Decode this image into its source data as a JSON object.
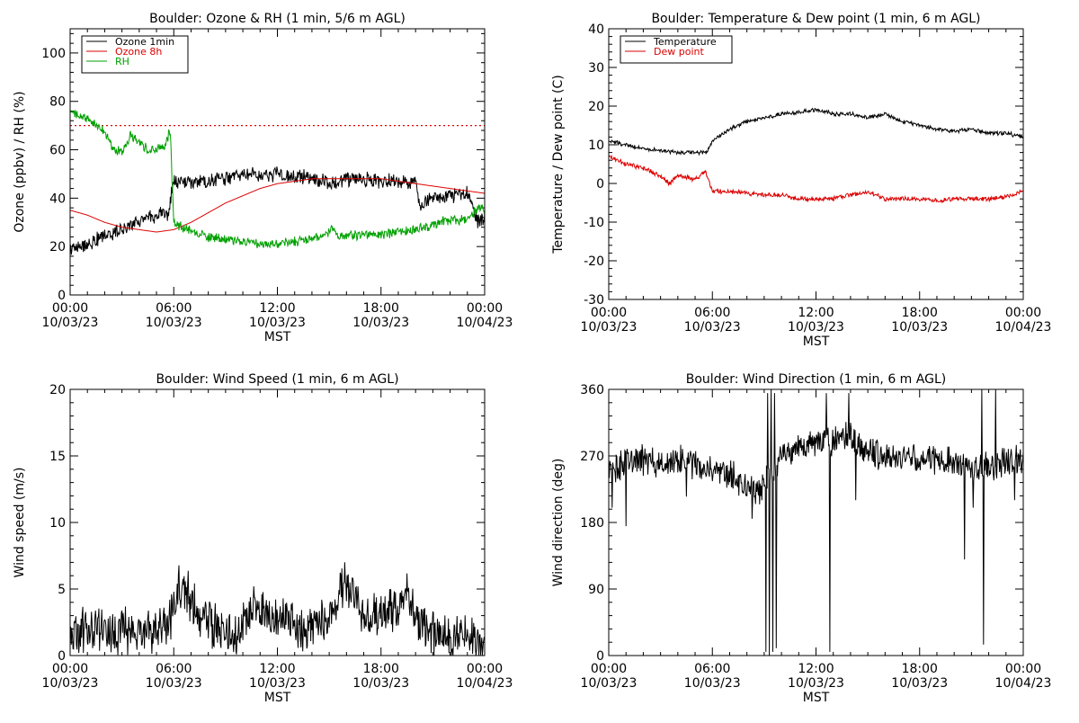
{
  "chart_data": [
    {
      "type": "line",
      "title": "Boulder: Ozone & RH (1 min, 5/6 m AGL)",
      "ylabel": "Ozone (ppbv) / RH (%)",
      "xlabel": "MST",
      "ylim": [
        0,
        110
      ],
      "yticks": [
        0,
        20,
        40,
        60,
        80,
        100
      ],
      "xtick_times": [
        "00:00",
        "06:00",
        "12:00",
        "18:00",
        "00:00"
      ],
      "xtick_dates": [
        "10/03/23",
        "10/03/23",
        "10/03/23",
        "10/03/23",
        "10/04/23"
      ],
      "xlim_hours": [
        0,
        24
      ],
      "legend_position": "top-left",
      "reference_line": {
        "y": 70,
        "color": "#dd0000",
        "style": "dotted"
      },
      "series": [
        {
          "name": "Ozone 1min",
          "color": "#000000",
          "noise": 1.8,
          "points": [
            [
              0,
              19
            ],
            [
              1,
              21
            ],
            [
              2,
              24
            ],
            [
              3,
              27
            ],
            [
              4,
              31
            ],
            [
              5,
              33
            ],
            [
              5.7,
              34
            ],
            [
              5.85,
              42
            ],
            [
              6,
              46
            ],
            [
              7,
              47
            ],
            [
              8,
              47
            ],
            [
              9,
              48
            ],
            [
              10,
              50
            ],
            [
              11,
              49
            ],
            [
              12,
              50
            ],
            [
              13,
              49
            ],
            [
              14,
              48
            ],
            [
              15,
              46
            ],
            [
              16,
              48
            ],
            [
              17,
              48
            ],
            [
              18,
              47
            ],
            [
              19,
              47
            ],
            [
              20,
              47
            ],
            [
              20.2,
              37
            ],
            [
              21,
              40
            ],
            [
              22,
              41
            ],
            [
              23,
              42
            ],
            [
              23.6,
              31
            ],
            [
              24,
              32
            ]
          ]
        },
        {
          "name": "Ozone 8h",
          "color": "#dd0000",
          "noise": 0,
          "points": [
            [
              0,
              35
            ],
            [
              1,
              33
            ],
            [
              2,
              30
            ],
            [
              3,
              28
            ],
            [
              4,
              27
            ],
            [
              5,
              26
            ],
            [
              6,
              27
            ],
            [
              7,
              30
            ],
            [
              8,
              34
            ],
            [
              9,
              38
            ],
            [
              10,
              41
            ],
            [
              11,
              44
            ],
            [
              12,
              46
            ],
            [
              13,
              47
            ],
            [
              14,
              48
            ],
            [
              15,
              48
            ],
            [
              16,
              48
            ],
            [
              17,
              48
            ],
            [
              18,
              48
            ],
            [
              19,
              47
            ],
            [
              20,
              46
            ],
            [
              21,
              45
            ],
            [
              22,
              44
            ],
            [
              23,
              43
            ],
            [
              24,
              42
            ]
          ]
        },
        {
          "name": "RH",
          "color": "#00a000",
          "noise": 1.2,
          "points": [
            [
              0,
              75
            ],
            [
              1,
              73
            ],
            [
              2,
              68
            ],
            [
              2.5,
              60
            ],
            [
              3,
              59
            ],
            [
              3.5,
              66
            ],
            [
              4,
              63
            ],
            [
              4.5,
              60
            ],
            [
              5,
              60
            ],
            [
              5.5,
              62
            ],
            [
              5.8,
              68
            ],
            [
              5.9,
              48
            ],
            [
              6,
              30
            ],
            [
              7,
              26
            ],
            [
              8,
              24
            ],
            [
              9,
              23
            ],
            [
              10,
              22
            ],
            [
              11,
              21
            ],
            [
              12,
              21
            ],
            [
              13,
              22
            ],
            [
              14,
              23
            ],
            [
              15,
              26
            ],
            [
              15.2,
              28
            ],
            [
              15.6,
              24
            ],
            [
              16,
              24
            ],
            [
              17,
              25
            ],
            [
              18,
              25
            ],
            [
              19,
              26
            ],
            [
              20,
              27
            ],
            [
              21,
              29
            ],
            [
              22,
              31
            ],
            [
              23,
              31
            ],
            [
              23.6,
              36
            ],
            [
              24,
              35
            ]
          ]
        }
      ]
    },
    {
      "type": "line",
      "title": "Boulder: Temperature & Dew point (1 min, 6 m AGL)",
      "ylabel": "Temperature / Dew point (C)",
      "xlabel": "MST",
      "ylim": [
        -30,
        40
      ],
      "yticks": [
        -30,
        -20,
        -10,
        0,
        10,
        20,
        30,
        40
      ],
      "xtick_times": [
        "00:00",
        "06:00",
        "12:00",
        "18:00",
        "00:00"
      ],
      "xtick_dates": [
        "10/03/23",
        "10/03/23",
        "10/03/23",
        "10/03/23",
        "10/04/23"
      ],
      "xlim_hours": [
        0,
        24
      ],
      "legend_position": "top-left",
      "series": [
        {
          "name": "Temperature",
          "color": "#000000",
          "noise": 0.3,
          "points": [
            [
              0,
              11
            ],
            [
              1,
              10
            ],
            [
              2,
              9
            ],
            [
              3,
              8.5
            ],
            [
              4,
              8
            ],
            [
              5,
              8
            ],
            [
              5.7,
              8
            ],
            [
              6,
              11
            ],
            [
              7,
              14
            ],
            [
              8,
              16
            ],
            [
              9,
              17
            ],
            [
              10,
              18
            ],
            [
              11,
              18.5
            ],
            [
              12,
              19
            ],
            [
              13,
              18
            ],
            [
              14,
              18
            ],
            [
              15,
              17
            ],
            [
              16,
              18
            ],
            [
              17,
              16
            ],
            [
              18,
              15
            ],
            [
              19,
              14
            ],
            [
              20,
              13.5
            ],
            [
              21,
              14
            ],
            [
              22,
              13
            ],
            [
              23,
              13
            ],
            [
              24,
              12
            ]
          ]
        },
        {
          "name": "Dew point",
          "color": "#dd0000",
          "noise": 0.35,
          "points": [
            [
              0,
              7
            ],
            [
              1,
              5
            ],
            [
              2,
              4
            ],
            [
              3,
              2
            ],
            [
              3.5,
              0
            ],
            [
              4,
              2
            ],
            [
              5,
              1
            ],
            [
              5.6,
              3
            ],
            [
              6,
              -2
            ],
            [
              7,
              -2
            ],
            [
              8,
              -2.5
            ],
            [
              9,
              -3
            ],
            [
              10,
              -3
            ],
            [
              11,
              -4
            ],
            [
              12,
              -4
            ],
            [
              13,
              -4
            ],
            [
              14,
              -3
            ],
            [
              15,
              -2
            ],
            [
              16,
              -4
            ],
            [
              17,
              -4
            ],
            [
              18,
              -4
            ],
            [
              19,
              -4.5
            ],
            [
              20,
              -4
            ],
            [
              21,
              -4
            ],
            [
              22,
              -4
            ],
            [
              23,
              -3.5
            ],
            [
              24,
              -2
            ]
          ]
        }
      ]
    },
    {
      "type": "line",
      "title": "Boulder: Wind Speed (1 min, 6 m AGL)",
      "ylabel": "Wind speed (m/s)",
      "xlabel": "MST",
      "ylim": [
        0,
        20
      ],
      "yticks": [
        0,
        5,
        10,
        15,
        20
      ],
      "xtick_times": [
        "00:00",
        "06:00",
        "12:00",
        "18:00",
        "00:00"
      ],
      "xtick_dates": [
        "10/03/23",
        "10/03/23",
        "10/03/23",
        "10/03/23",
        "10/04/23"
      ],
      "xlim_hours": [
        0,
        24
      ],
      "series": [
        {
          "name": "",
          "color": "#000000",
          "noise": 1.0,
          "points": [
            [
              0,
              1.5
            ],
            [
              1,
              1.8
            ],
            [
              2,
              1.8
            ],
            [
              3,
              1.8
            ],
            [
              4,
              1.8
            ],
            [
              5,
              2
            ],
            [
              5.6,
              2
            ],
            [
              6,
              4
            ],
            [
              6.5,
              5.5
            ],
            [
              7,
              4
            ],
            [
              8,
              2.5
            ],
            [
              9,
              1.5
            ],
            [
              10,
              2
            ],
            [
              10.5,
              4
            ],
            [
              11,
              3.5
            ],
            [
              12,
              2.5
            ],
            [
              12.5,
              3
            ],
            [
              13,
              2
            ],
            [
              14,
              2
            ],
            [
              15,
              3
            ],
            [
              15.5,
              4.5
            ],
            [
              16,
              5.5
            ],
            [
              16.5,
              4
            ],
            [
              17,
              3
            ],
            [
              18,
              3
            ],
            [
              19,
              3.5
            ],
            [
              19.5,
              4.5
            ],
            [
              20,
              3
            ],
            [
              21,
              1.5
            ],
            [
              22,
              1.2
            ],
            [
              23,
              1.2
            ],
            [
              24,
              1
            ]
          ]
        }
      ]
    },
    {
      "type": "line",
      "title": "Boulder: Wind Direction (1 min, 6 m AGL)",
      "ylabel": "Wind direction (deg)",
      "xlabel": "MST",
      "ylim": [
        0,
        360
      ],
      "yticks": [
        0,
        90,
        180,
        270,
        360
      ],
      "xtick_times": [
        "00:00",
        "06:00",
        "12:00",
        "18:00",
        "00:00"
      ],
      "xtick_dates": [
        "10/03/23",
        "10/03/23",
        "10/03/23",
        "10/03/23",
        "10/04/23"
      ],
      "xlim_hours": [
        0,
        24
      ],
      "series": [
        {
          "name": "",
          "color": "#000000",
          "noise": 12,
          "points": [
            [
              0,
              250
            ],
            [
              1,
              262
            ],
            [
              2,
              265
            ],
            [
              3,
              258
            ],
            [
              4,
              265
            ],
            [
              5,
              258
            ],
            [
              6,
              250
            ],
            [
              7,
              245
            ],
            [
              8,
              230
            ],
            [
              8.8,
              225
            ],
            [
              9.2,
              240
            ],
            [
              9.6,
              240
            ],
            [
              10,
              275
            ],
            [
              11,
              280
            ],
            [
              12,
              285
            ],
            [
              13,
              290
            ],
            [
              14,
              295
            ],
            [
              15,
              275
            ],
            [
              16,
              268
            ],
            [
              17,
              265
            ],
            [
              18,
              265
            ],
            [
              19,
              265
            ],
            [
              20,
              262
            ],
            [
              21,
              250
            ],
            [
              22,
              255
            ],
            [
              23,
              265
            ],
            [
              24,
              265
            ]
          ],
          "spikes": [
            [
              0.2,
              200
            ],
            [
              1.0,
              175
            ],
            [
              4.5,
              215
            ],
            [
              8.3,
              185
            ],
            [
              9.1,
              5
            ],
            [
              9.2,
              355
            ],
            [
              9.3,
              0
            ],
            [
              9.4,
              360
            ],
            [
              9.5,
              5
            ],
            [
              9.6,
              355
            ],
            [
              9.7,
              10
            ],
            [
              12.8,
              5
            ],
            [
              12.6,
              355
            ],
            [
              13.9,
              355
            ],
            [
              14.3,
              210
            ],
            [
              20.6,
              130
            ],
            [
              21.1,
              200
            ],
            [
              21.6,
              360
            ],
            [
              21.7,
              15
            ],
            [
              22.4,
              360
            ],
            [
              23.5,
              210
            ]
          ]
        }
      ]
    }
  ]
}
